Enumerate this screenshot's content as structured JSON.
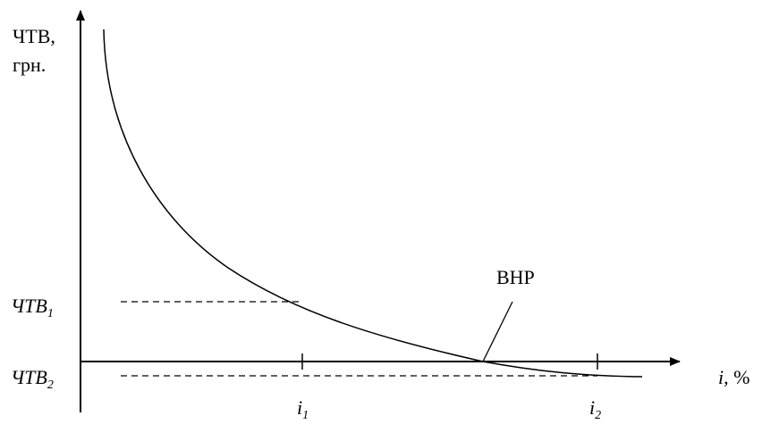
{
  "chart_data": {
    "type": "line",
    "y_axis_label_line1": "ЧТВ,",
    "y_axis_label_line2": "грн.",
    "x_axis_label_var": "i",
    "x_axis_label_unit": ", %",
    "curve_annotation": "ВНР",
    "y_markers": [
      {
        "base": "ЧТВ",
        "sub": "1"
      },
      {
        "base": "ЧТВ",
        "sub": "2"
      }
    ],
    "x_markers": [
      {
        "base": "i",
        "sub": "1"
      },
      {
        "base": "i",
        "sub": "2"
      }
    ]
  }
}
